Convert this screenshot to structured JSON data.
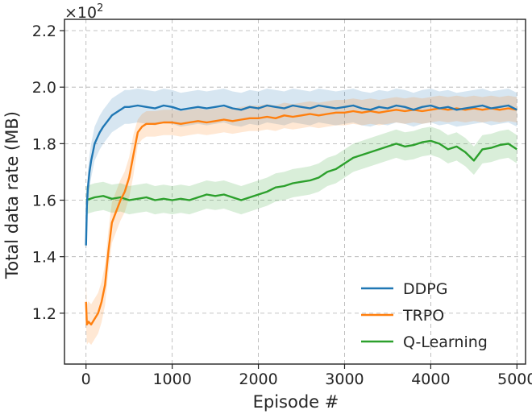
{
  "chart_data": {
    "type": "line",
    "title": "",
    "xlabel": "Episode #",
    "ylabel": "Total data rate (MB)",
    "y_scale_label": "×10",
    "y_scale_exponent": "2",
    "xlim": [
      -250,
      5100
    ],
    "ylim": [
      1.02,
      2.24
    ],
    "xticks": [
      0,
      1000,
      2000,
      3000,
      4000,
      5000
    ],
    "xtick_labels": [
      "0",
      "1000",
      "2000",
      "3000",
      "4000",
      "5000"
    ],
    "yticks": [
      1.2,
      1.4,
      1.6,
      1.8,
      2.0,
      2.2
    ],
    "ytick_labels": [
      "1.2",
      "1.4",
      "1.6",
      "1.8",
      "2.0",
      "2.2"
    ],
    "grid": true,
    "legend_position": "lower-right",
    "series": [
      {
        "name": "DDPG",
        "color": "#1f77b4",
        "x": [
          0,
          10,
          20,
          40,
          60,
          80,
          100,
          130,
          160,
          200,
          250,
          300,
          350,
          400,
          450,
          500,
          600,
          700,
          800,
          900,
          1000,
          1100,
          1200,
          1300,
          1400,
          1500,
          1600,
          1700,
          1800,
          1900,
          2000,
          2100,
          2200,
          2300,
          2400,
          2500,
          2600,
          2700,
          2800,
          2900,
          3000,
          3100,
          3200,
          3300,
          3400,
          3500,
          3600,
          3700,
          3800,
          3900,
          4000,
          4100,
          4200,
          4300,
          4400,
          4500,
          4600,
          4700,
          4800,
          4900,
          5000
        ],
        "y": [
          1.44,
          1.58,
          1.64,
          1.7,
          1.74,
          1.77,
          1.8,
          1.82,
          1.84,
          1.86,
          1.88,
          1.9,
          1.91,
          1.92,
          1.93,
          1.93,
          1.935,
          1.93,
          1.925,
          1.935,
          1.93,
          1.92,
          1.925,
          1.93,
          1.925,
          1.93,
          1.935,
          1.925,
          1.92,
          1.93,
          1.925,
          1.935,
          1.93,
          1.925,
          1.935,
          1.93,
          1.925,
          1.935,
          1.93,
          1.925,
          1.93,
          1.935,
          1.925,
          1.92,
          1.93,
          1.925,
          1.935,
          1.93,
          1.92,
          1.93,
          1.935,
          1.925,
          1.93,
          1.92,
          1.925,
          1.93,
          1.935,
          1.925,
          1.93,
          1.935,
          1.92
        ]
      },
      {
        "name": "TRPO",
        "color": "#ff7f0e",
        "x": [
          0,
          10,
          30,
          60,
          100,
          140,
          180,
          220,
          260,
          300,
          350,
          400,
          450,
          500,
          550,
          600,
          650,
          700,
          800,
          900,
          1000,
          1100,
          1200,
          1300,
          1400,
          1500,
          1600,
          1700,
          1800,
          1900,
          2000,
          2100,
          2200,
          2300,
          2400,
          2500,
          2600,
          2700,
          2800,
          2900,
          3000,
          3100,
          3200,
          3300,
          3400,
          3500,
          3600,
          3700,
          3800,
          3900,
          4000,
          4100,
          4200,
          4300,
          4400,
          4500,
          4600,
          4700,
          4800,
          4900,
          5000
        ],
        "y": [
          1.24,
          1.16,
          1.17,
          1.16,
          1.18,
          1.2,
          1.24,
          1.3,
          1.42,
          1.52,
          1.56,
          1.6,
          1.63,
          1.68,
          1.76,
          1.84,
          1.86,
          1.87,
          1.87,
          1.875,
          1.875,
          1.87,
          1.875,
          1.88,
          1.875,
          1.88,
          1.885,
          1.88,
          1.885,
          1.89,
          1.89,
          1.895,
          1.89,
          1.9,
          1.895,
          1.9,
          1.905,
          1.9,
          1.905,
          1.91,
          1.91,
          1.915,
          1.91,
          1.915,
          1.91,
          1.915,
          1.92,
          1.915,
          1.92,
          1.915,
          1.92,
          1.925,
          1.92,
          1.925,
          1.92,
          1.925,
          1.92,
          1.925,
          1.92,
          1.925,
          1.92
        ]
      },
      {
        "name": "Q-Learning",
        "color": "#2ca02c",
        "x": [
          0,
          50,
          100,
          200,
          300,
          400,
          500,
          600,
          700,
          800,
          900,
          1000,
          1100,
          1200,
          1300,
          1400,
          1500,
          1600,
          1700,
          1800,
          1900,
          2000,
          2100,
          2200,
          2300,
          2400,
          2500,
          2600,
          2700,
          2800,
          2900,
          3000,
          3100,
          3200,
          3300,
          3400,
          3500,
          3600,
          3700,
          3800,
          3900,
          4000,
          4100,
          4200,
          4300,
          4400,
          4500,
          4600,
          4700,
          4800,
          4900,
          5000
        ],
        "y": [
          1.6,
          1.605,
          1.61,
          1.615,
          1.605,
          1.61,
          1.6,
          1.605,
          1.61,
          1.6,
          1.605,
          1.6,
          1.605,
          1.6,
          1.61,
          1.62,
          1.615,
          1.62,
          1.61,
          1.6,
          1.61,
          1.62,
          1.63,
          1.645,
          1.65,
          1.66,
          1.665,
          1.67,
          1.68,
          1.7,
          1.71,
          1.73,
          1.75,
          1.76,
          1.77,
          1.78,
          1.79,
          1.8,
          1.79,
          1.795,
          1.805,
          1.81,
          1.8,
          1.78,
          1.79,
          1.77,
          1.74,
          1.78,
          1.785,
          1.795,
          1.8,
          1.78
        ]
      }
    ]
  }
}
